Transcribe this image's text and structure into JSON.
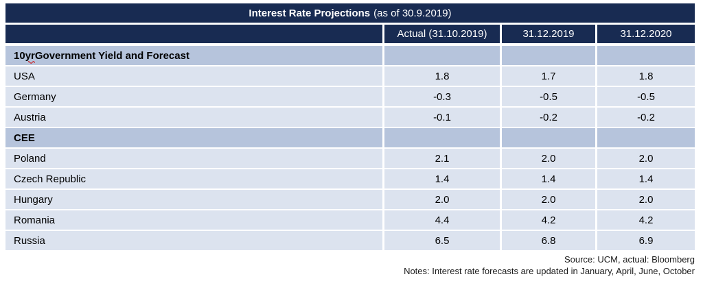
{
  "title": {
    "bold": "Interest Rate Projections",
    "rest": "(as of 30.9.2019)"
  },
  "columns": [
    "Actual (31.10.2019)",
    "31.12.2019",
    "31.12.2020"
  ],
  "rows": [
    {
      "type": "section",
      "label": "10 yr Government Yield and Forecast",
      "squiggle": "yr",
      "values": [
        "",
        "",
        ""
      ]
    },
    {
      "type": "data",
      "label": "USA",
      "values": [
        "1.8",
        "1.7",
        "1.8"
      ]
    },
    {
      "type": "data",
      "label": "Germany",
      "values": [
        "-0.3",
        "-0.5",
        "-0.5"
      ]
    },
    {
      "type": "data",
      "label": "Austria",
      "values": [
        "-0.1",
        "-0.2",
        "-0.2"
      ]
    },
    {
      "type": "section",
      "label": "CEE",
      "values": [
        "",
        "",
        ""
      ]
    },
    {
      "type": "data",
      "label": "Poland",
      "values": [
        "2.1",
        "2.0",
        "2.0"
      ]
    },
    {
      "type": "data",
      "label": "Czech Republic",
      "values": [
        "1.4",
        "1.4",
        "1.4"
      ]
    },
    {
      "type": "data",
      "label": "Hungary",
      "values": [
        "2.0",
        "2.0",
        "2.0"
      ]
    },
    {
      "type": "data",
      "label": "Romania",
      "values": [
        "4.4",
        "4.2",
        "4.2"
      ]
    },
    {
      "type": "data",
      "label": "Russia",
      "values": [
        "6.5",
        "6.8",
        "6.9"
      ]
    }
  ],
  "footer": {
    "source": "Source: UCM, actual: Bloomberg",
    "notes": "Notes: Interest rate forecasts are updated in January, April, June, October"
  },
  "colors": {
    "navy": "#182b52",
    "section_row": "#b6c4dc",
    "data_row": "#dce3ef",
    "squiggle_red": "#cc0000"
  }
}
